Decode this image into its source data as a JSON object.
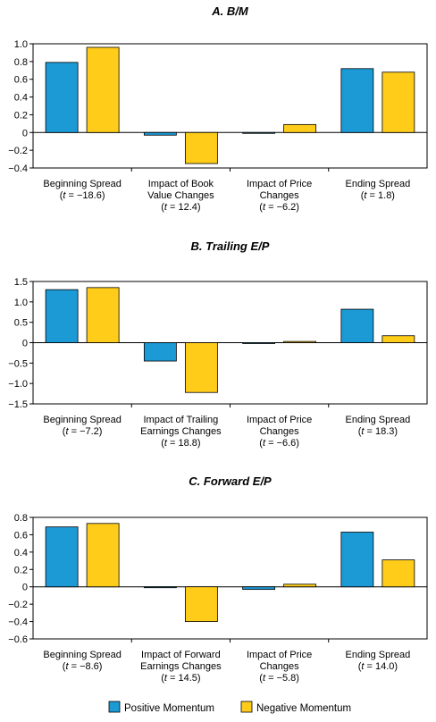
{
  "chart_data": [
    {
      "type": "bar",
      "title": "A. B/M",
      "ylim": [
        -0.4,
        1.0
      ],
      "yticks": [
        -0.4,
        -0.2,
        0,
        0.2,
        0.4,
        0.6,
        0.8,
        1.0
      ],
      "ytick_labels": [
        "-0.4",
        "-0.2",
        "0",
        "0.2",
        "0.4",
        "0.6",
        "0.8",
        "1.0"
      ],
      "categories": [
        {
          "line1": "Beginning Spread",
          "tstat": "-18.6"
        },
        {
          "line1": "Impact of Book",
          "line2": "Value Changes",
          "tstat": "12.4"
        },
        {
          "line1": "Impact of Price",
          "line2": "Changes",
          "tstat": "-6.2"
        },
        {
          "line1": "Ending Spread",
          "tstat": "1.8"
        }
      ],
      "series": [
        {
          "name": "Positive Momentum",
          "values": [
            0.79,
            -0.03,
            -0.01,
            0.72
          ]
        },
        {
          "name": "Negative Momentum",
          "values": [
            0.96,
            -0.35,
            0.09,
            0.68
          ]
        }
      ]
    },
    {
      "type": "bar",
      "title": "B. Trailing E/P",
      "ylim": [
        -1.5,
        1.5
      ],
      "yticks": [
        -1.5,
        -1.0,
        -0.5,
        0,
        0.5,
        1.0,
        1.5
      ],
      "ytick_labels": [
        "-1.5",
        "-1.0",
        "-0.5",
        "0",
        "0.5",
        "1.0",
        "1.5"
      ],
      "categories": [
        {
          "line1": "Beginning Spread",
          "tstat": "-7.2"
        },
        {
          "line1": "Impact of Trailing",
          "line2": "Earnings Changes",
          "tstat": "18.8"
        },
        {
          "line1": "Impact of Price",
          "line2": "Changes",
          "tstat": "-6.6"
        },
        {
          "line1": "Ending Spread",
          "tstat": "18.3"
        }
      ],
      "series": [
        {
          "name": "Positive Momentum",
          "values": [
            1.3,
            -0.45,
            -0.02,
            0.82
          ]
        },
        {
          "name": "Negative Momentum",
          "values": [
            1.35,
            -1.22,
            0.03,
            0.17
          ]
        }
      ]
    },
    {
      "type": "bar",
      "title": "C. Forward E/P",
      "ylim": [
        -0.6,
        0.8
      ],
      "yticks": [
        -0.6,
        -0.4,
        -0.2,
        0,
        0.2,
        0.4,
        0.6,
        0.8
      ],
      "ytick_labels": [
        "-0.6",
        "-0.4",
        "-0.2",
        "0",
        "0.2",
        "0.4",
        "0.6",
        "0.8"
      ],
      "categories": [
        {
          "line1": "Beginning Spread",
          "tstat": "-8.6"
        },
        {
          "line1": "Impact of Forward",
          "line2": "Earnings Changes",
          "tstat": "14.5"
        },
        {
          "line1": "Impact of Price",
          "line2": "Changes",
          "tstat": "-5.8"
        },
        {
          "line1": "Ending Spread",
          "tstat": "14.0"
        }
      ],
      "series": [
        {
          "name": "Positive Momentum",
          "values": [
            0.69,
            -0.01,
            -0.03,
            0.63
          ]
        },
        {
          "name": "Negative Momentum",
          "values": [
            0.73,
            -0.4,
            0.03,
            0.31
          ]
        }
      ]
    }
  ],
  "t_prefix": "t",
  "t_eq": " = ",
  "legend": [
    {
      "label": "Positive Momentum",
      "color": "#1B9AD6"
    },
    {
      "label": "Negative Momentum",
      "color": "#FFCC1A"
    }
  ]
}
